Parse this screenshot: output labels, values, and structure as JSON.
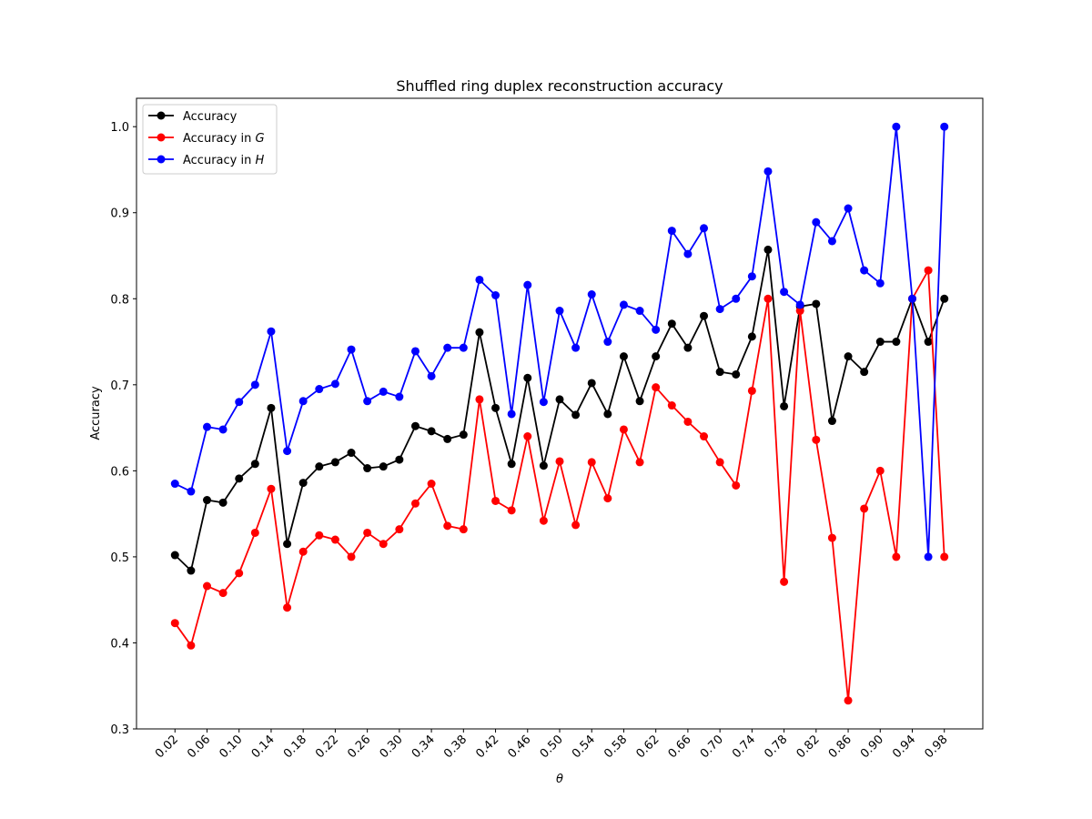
{
  "chart_data": {
    "type": "line",
    "title": "Shuffled ring duplex reconstruction accuracy",
    "xlabel": "θ",
    "ylabel": "Accuracy",
    "xlim": [
      -0.028,
      1.028
    ],
    "ylim": [
      0.3,
      1.033
    ],
    "x": [
      0.02,
      0.04,
      0.06,
      0.08,
      0.1,
      0.12,
      0.14,
      0.16,
      0.18,
      0.2,
      0.22,
      0.24,
      0.26,
      0.28,
      0.3,
      0.32,
      0.34,
      0.36,
      0.38,
      0.4,
      0.42,
      0.44,
      0.46,
      0.48,
      0.5,
      0.52,
      0.54,
      0.56,
      0.58,
      0.6,
      0.62,
      0.64,
      0.66,
      0.68,
      0.7,
      0.72,
      0.74,
      0.76,
      0.78,
      0.8,
      0.82,
      0.84,
      0.86,
      0.88,
      0.9,
      0.92,
      0.94,
      0.96,
      0.98
    ],
    "xticks": [
      0.02,
      0.06,
      0.1,
      0.14,
      0.18,
      0.22,
      0.26,
      0.3,
      0.34,
      0.38,
      0.42,
      0.46,
      0.5,
      0.54,
      0.58,
      0.62,
      0.66,
      0.7,
      0.74,
      0.78,
      0.82,
      0.86,
      0.9,
      0.94,
      0.98
    ],
    "xtick_labels": [
      "0.02",
      "0.06",
      "0.10",
      "0.14",
      "0.18",
      "0.22",
      "0.26",
      "0.30",
      "0.34",
      "0.38",
      "0.42",
      "0.46",
      "0.50",
      "0.54",
      "0.58",
      "0.62",
      "0.66",
      "0.70",
      "0.74",
      "0.78",
      "0.82",
      "0.86",
      "0.90",
      "0.94",
      "0.98"
    ],
    "yticks": [
      0.3,
      0.4,
      0.5,
      0.6,
      0.7,
      0.8,
      0.9,
      1.0
    ],
    "ytick_labels": [
      "0.3",
      "0.4",
      "0.5",
      "0.6",
      "0.7",
      "0.8",
      "0.9",
      "1.0"
    ],
    "grid": false,
    "legend_position": "top-left",
    "series": [
      {
        "name": "Accuracy",
        "legend_label": "Accuracy",
        "legend_italic": "",
        "color": "#000000",
        "values": [
          0.502,
          0.484,
          0.566,
          0.563,
          0.591,
          0.608,
          0.673,
          0.515,
          0.586,
          0.605,
          0.61,
          0.621,
          0.603,
          0.605,
          0.613,
          0.652,
          0.646,
          0.637,
          0.642,
          0.761,
          0.673,
          0.608,
          0.708,
          0.606,
          0.683,
          0.665,
          0.702,
          0.666,
          0.733,
          0.681,
          0.733,
          0.771,
          0.743,
          0.78,
          0.715,
          0.712,
          0.756,
          0.857,
          0.675,
          0.791,
          0.794,
          0.658,
          0.733,
          0.715,
          0.75,
          0.75,
          0.8,
          0.75,
          0.8
        ]
      },
      {
        "name": "Accuracy in G",
        "legend_label": "Accuracy in ",
        "legend_italic": "G",
        "color": "#ff0000",
        "values": [
          0.423,
          0.397,
          0.466,
          0.458,
          0.481,
          0.528,
          0.579,
          0.441,
          0.506,
          0.525,
          0.52,
          0.5,
          0.528,
          0.515,
          0.532,
          0.562,
          0.585,
          0.536,
          0.532,
          0.683,
          0.565,
          0.554,
          0.64,
          0.542,
          0.611,
          0.537,
          0.61,
          0.568,
          0.648,
          0.61,
          0.697,
          0.676,
          0.657,
          0.64,
          0.61,
          0.583,
          0.693,
          0.8,
          0.471,
          0.786,
          0.636,
          0.522,
          0.333,
          0.556,
          0.6,
          0.5,
          0.8,
          0.833,
          0.5
        ]
      },
      {
        "name": "Accuracy in H",
        "legend_label": "Accuracy in ",
        "legend_italic": "H",
        "color": "#0000ff",
        "values": [
          0.585,
          0.576,
          0.651,
          0.648,
          0.68,
          0.7,
          0.762,
          0.623,
          0.681,
          0.695,
          0.701,
          0.741,
          0.681,
          0.692,
          0.686,
          0.739,
          0.71,
          0.743,
          0.743,
          0.822,
          0.804,
          0.666,
          0.816,
          0.68,
          0.786,
          0.743,
          0.805,
          0.75,
          0.793,
          0.786,
          0.764,
          0.879,
          0.852,
          0.882,
          0.788,
          0.8,
          0.826,
          0.948,
          0.808,
          0.793,
          0.889,
          0.867,
          0.905,
          0.833,
          0.818,
          1.0,
          0.8,
          0.5,
          1.0
        ]
      }
    ]
  }
}
